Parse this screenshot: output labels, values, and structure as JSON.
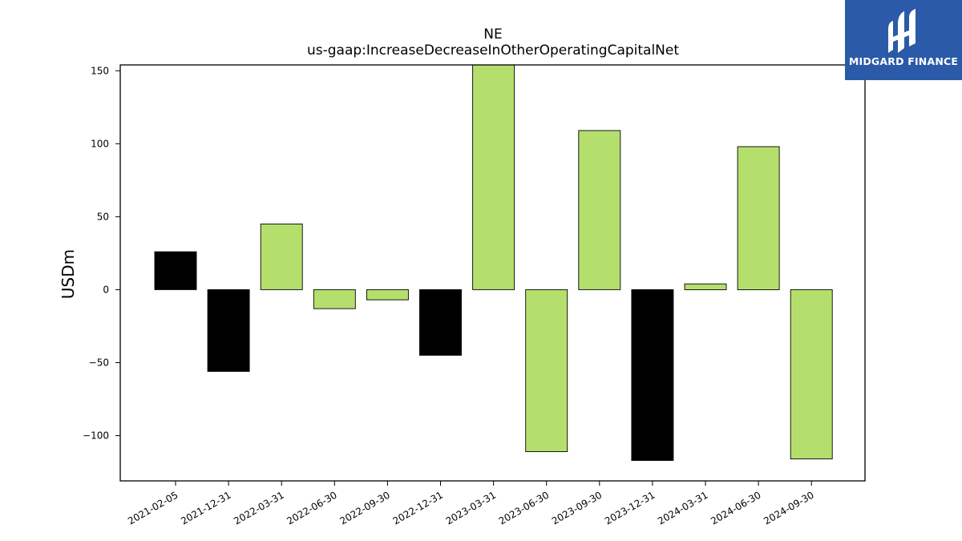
{
  "chart_data": {
    "type": "bar",
    "title": "NE",
    "subtitle": "us-gaap:IncreaseDecreaseInOtherOperatingCapitalNet",
    "xlabel": "",
    "ylabel": "USDm",
    "ylim": [
      -131,
      154
    ],
    "yticks": [
      150,
      100,
      50,
      0,
      -50,
      -100
    ],
    "ytick_labels": [
      "150",
      "100",
      "50",
      "0",
      "−50",
      "−100"
    ],
    "grid": false,
    "categories": [
      "2021-02-05",
      "2021-12-31",
      "2022-03-31",
      "2022-06-30",
      "2022-09-30",
      "2022-12-31",
      "2023-03-31",
      "2023-06-30",
      "2023-09-30",
      "2023-12-31",
      "2024-03-31",
      "2024-06-30",
      "2024-09-30"
    ],
    "values": [
      26,
      -56,
      45,
      -13,
      -7,
      -45,
      154,
      -111,
      109,
      -117,
      4,
      98,
      -116
    ],
    "bar_colors": [
      "#000000",
      "#000000",
      "#b5df6c",
      "#b5df6c",
      "#b5df6c",
      "#000000",
      "#b5df6c",
      "#b5df6c",
      "#b5df6c",
      "#000000",
      "#b5df6c",
      "#b5df6c",
      "#b5df6c"
    ]
  },
  "logo": {
    "text": "MIDGARD FINANCE",
    "background": "#2b5aa8"
  }
}
